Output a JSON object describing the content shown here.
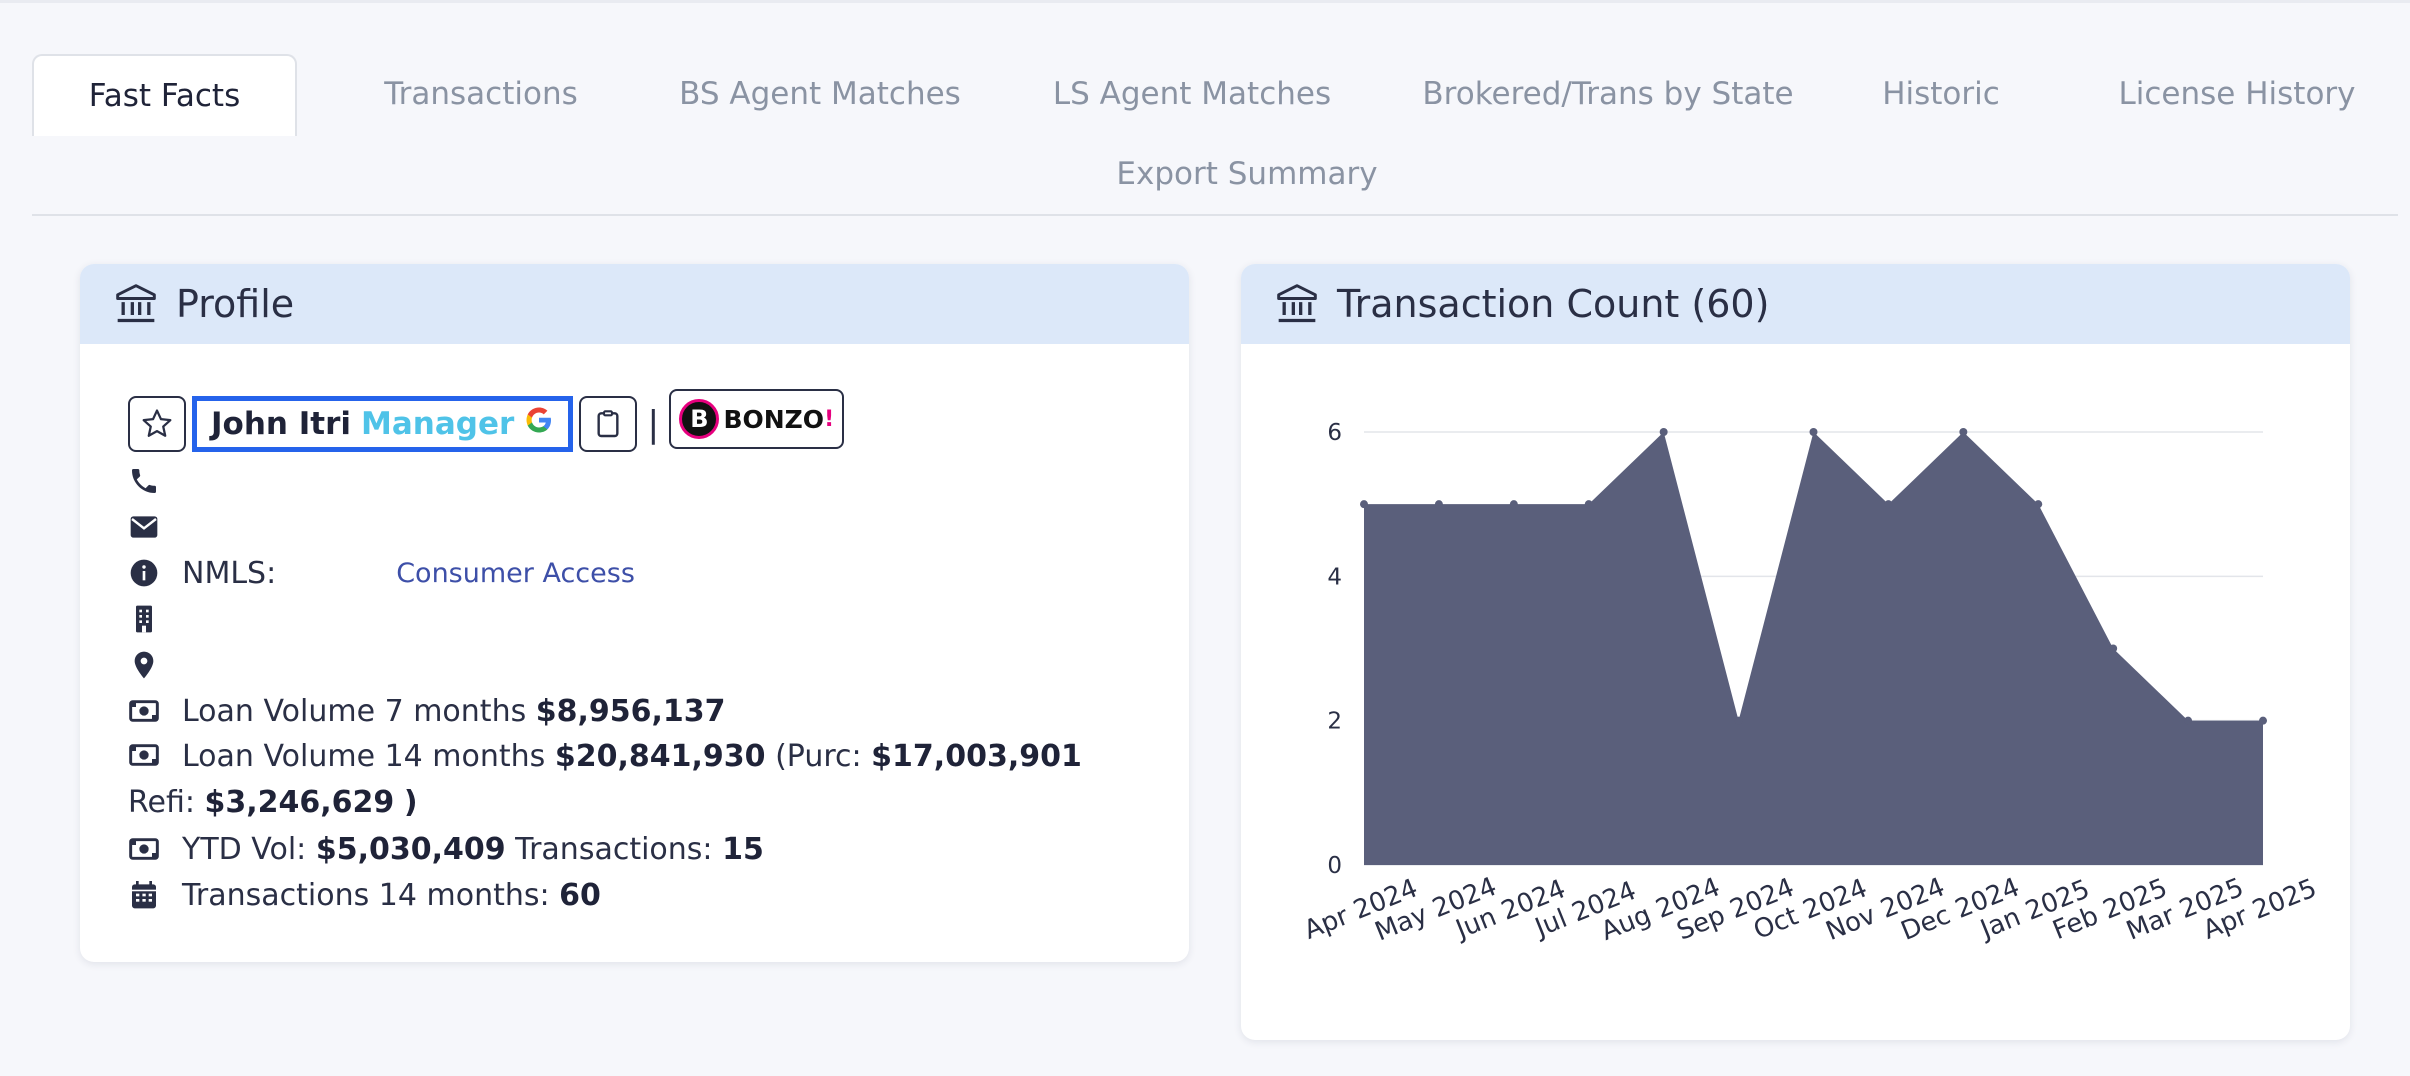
{
  "tabs": [
    {
      "label": "Fast Facts",
      "active": true
    },
    {
      "label": "Transactions",
      "active": false
    },
    {
      "label": "BS Agent Matches",
      "active": false
    },
    {
      "label": "LS Agent Matches",
      "active": false
    },
    {
      "label": "Brokered/Trans by State",
      "active": false
    },
    {
      "label": "Historic",
      "active": false
    },
    {
      "label": "License History",
      "active": false
    },
    {
      "label": "Export Summary",
      "active": false
    }
  ],
  "profile": {
    "title": "Profile",
    "name": "John Itri",
    "role": "Manager",
    "google_letter": "G",
    "separator": "|",
    "bonzo_letter": "B",
    "bonzo_label": "BONZO",
    "bonzo_bang": "!",
    "nmls_label": "NMLS:",
    "consumer_access": "Consumer Access",
    "loan7_label": "Loan Volume 7 months",
    "loan7_value": "$8,956,137",
    "loan14_label": "Loan Volume 14 months",
    "loan14_value": "$20,841,930",
    "purc_label": "(Purc:",
    "purc_value": "$17,003,901",
    "refi_label": "Refi:",
    "refi_value": "$3,246,629",
    "refi_close": ")",
    "ytd_label": "YTD Vol:",
    "ytd_value": "$5,030,409",
    "ytd_trans_label": "Transactions:",
    "ytd_trans_value": "15",
    "trans14_label": "Transactions 14 months:",
    "trans14_value": "60",
    "icons": [
      "star-icon",
      "clipboard-icon",
      "phone-icon",
      "mail-icon",
      "info-icon",
      "building-icon",
      "map-pin-icon",
      "money-icon",
      "calendar-icon"
    ]
  },
  "transaction_card": {
    "title": "Transaction Count (60)"
  },
  "chart_data": {
    "type": "area",
    "title": "Transaction Count (60)",
    "categories": [
      "Apr 2024",
      "May 2024",
      "Jun 2024",
      "Jul 2024",
      "Aug 2024",
      "Sep 2024",
      "Oct 2024",
      "Nov 2024",
      "Dec 2024",
      "Jan 2025",
      "Feb 2025",
      "Mar 2025",
      "Apr 2025"
    ],
    "values": [
      5,
      5,
      5,
      5,
      6,
      2,
      6,
      5,
      6,
      5,
      3,
      2,
      2
    ],
    "ylim": [
      0,
      6
    ],
    "yticks": [
      0,
      2,
      4,
      6
    ],
    "grid": true,
    "legend": false,
    "fill_color": "#5a5f7b"
  },
  "colors": {
    "header_bg": "#dce8f9",
    "name_border": "#2563eb",
    "role_color": "#4fc3e8",
    "link_color": "#3d4fa8"
  }
}
